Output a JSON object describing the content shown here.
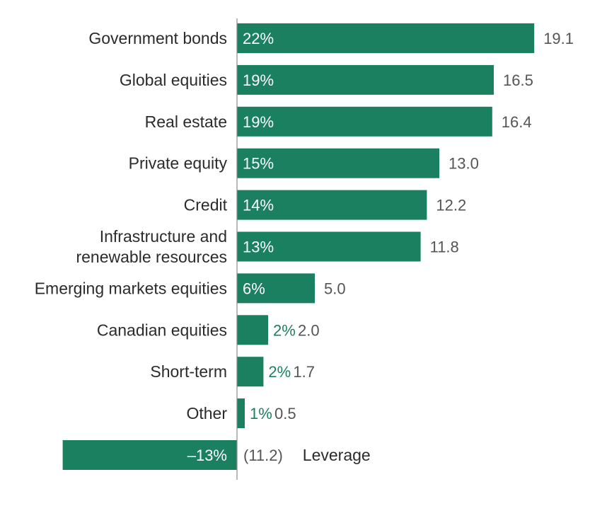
{
  "chart_data": {
    "type": "bar",
    "orientation": "horizontal",
    "title": "",
    "xlabel": "",
    "ylabel": "",
    "xlim": [
      -13.0,
      22.0
    ],
    "grid": false,
    "bar_color": "#1b8060",
    "outside_pct_color": "#1b8060",
    "value_color": "#555555",
    "categories": [
      "Government bonds",
      "Global equities",
      "Real estate",
      "Private equity",
      "Credit",
      "Infrastructure and renewable resources",
      "Emerging markets equities",
      "Canadian equities",
      "Short-term",
      "Other",
      "Leverage"
    ],
    "category_lines": [
      [
        "Government bonds"
      ],
      [
        "Global equities"
      ],
      [
        "Real estate"
      ],
      [
        "Private equity"
      ],
      [
        "Credit"
      ],
      [
        "Infrastructure and",
        "renewable resources"
      ],
      [
        "Emerging markets equities"
      ],
      [
        "Canadian equities"
      ],
      [
        "Short-term"
      ],
      [
        "Other"
      ],
      [
        "Leverage"
      ]
    ],
    "values": [
      19.1,
      16.5,
      16.4,
      13.0,
      12.2,
      11.8,
      5.0,
      2.0,
      1.7,
      0.5,
      -11.2
    ],
    "value_labels": [
      "19.1",
      "16.5",
      "16.4",
      "13.0",
      "12.2",
      "11.8",
      "5.0",
      "2.0",
      "1.7",
      "0.5",
      "(11.2)"
    ],
    "percent_labels": [
      "22%",
      "19%",
      "19%",
      "15%",
      "14%",
      "13%",
      "6%",
      "2%",
      "2%",
      "1%",
      "–13%"
    ]
  }
}
